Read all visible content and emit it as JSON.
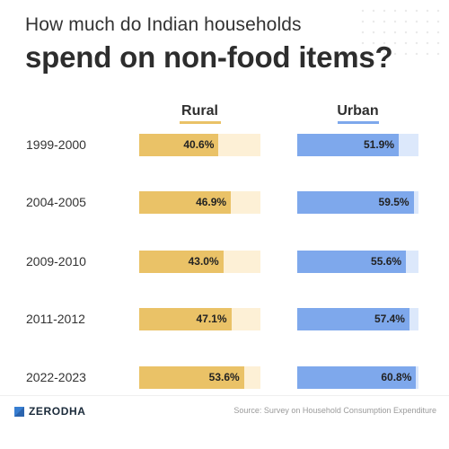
{
  "title_line1": "How much do Indian households",
  "title_line2": "spend on non-food items?",
  "source": "Source: Survey on Household Consumption Expenditure",
  "brand": "ZERODHA",
  "colors": {
    "rural_fill": "#EAC267",
    "rural_track": "#FDF0D6",
    "urban_fill": "#7EA8EC",
    "urban_track": "#DCE8FB",
    "brand_blue": "#387ED1"
  },
  "chart_data": {
    "type": "bar",
    "title": "How much do Indian households spend on non-food items?",
    "categories": [
      "1999-2000",
      "2004-2005",
      "2009-2010",
      "2011-2012",
      "2022-2023"
    ],
    "series": [
      {
        "name": "Rural",
        "values": [
          40.6,
          46.9,
          43.0,
          47.1,
          53.6
        ],
        "labels": [
          "40.6%",
          "46.9%",
          "43.0%",
          "47.1%",
          "53.6%"
        ]
      },
      {
        "name": "Urban",
        "values": [
          51.9,
          59.5,
          55.6,
          57.4,
          60.8
        ],
        "labels": [
          "51.9%",
          "59.5%",
          "55.6%",
          "57.4%",
          "60.8%"
        ]
      }
    ],
    "xlim": [
      0,
      62
    ],
    "grid": false,
    "legend": "column headers above bars"
  }
}
